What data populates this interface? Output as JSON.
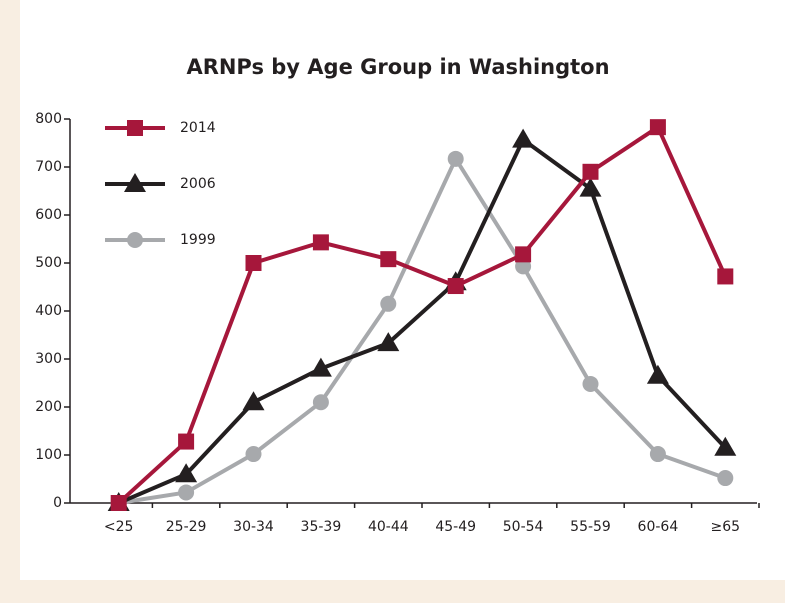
{
  "chart_data": {
    "type": "line",
    "title": "ARNPs by Age Group in Washington",
    "categories": [
      "<25",
      "25-29",
      "30-34",
      "35-39",
      "40-44",
      "45-49",
      "50-54",
      "55-59",
      "60-64",
      "≥65"
    ],
    "series": [
      {
        "name": "2014",
        "color": "#a6173b",
        "marker": "square",
        "values": [
          0,
          128,
          500,
          543,
          508,
          452,
          518,
          690,
          783,
          472
        ]
      },
      {
        "name": "2006",
        "color": "#231f20",
        "marker": "triangle",
        "values": [
          0,
          60,
          210,
          280,
          333,
          460,
          757,
          655,
          265,
          115
        ]
      },
      {
        "name": "1999",
        "color": "#a7a9ac",
        "marker": "circle",
        "values": [
          0,
          22,
          102,
          210,
          415,
          717,
          493,
          248,
          102,
          52
        ]
      }
    ],
    "ylim": [
      0,
      800
    ],
    "yticks": [
      0,
      100,
      200,
      300,
      400,
      500,
      600,
      700,
      800
    ],
    "legend": "top-left"
  }
}
